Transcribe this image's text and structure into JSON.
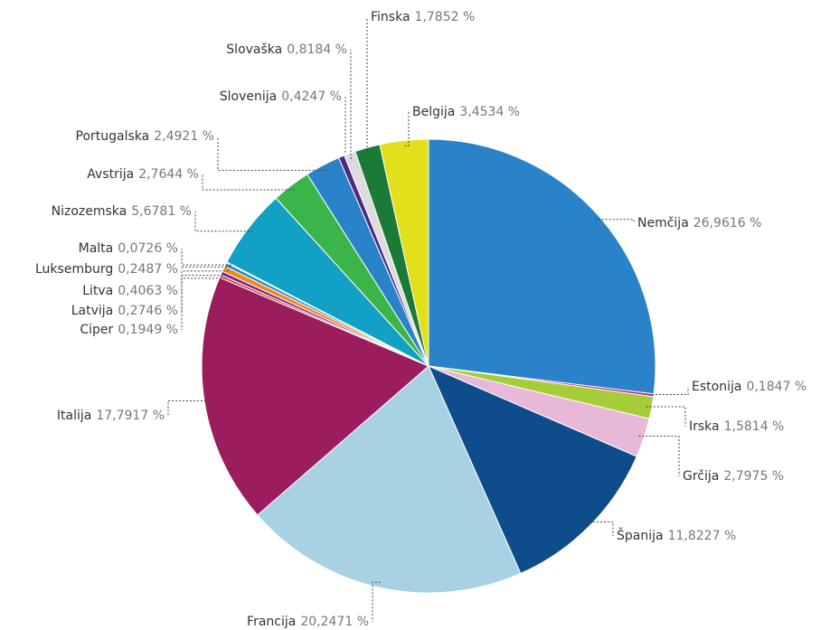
{
  "chart_data": {
    "type": "pie",
    "categories": [
      "Nemčija",
      "Estonija",
      "Irska",
      "Grčija",
      "Španija",
      "Francija",
      "Italija",
      "Ciper",
      "Latvija",
      "Litva",
      "Luksemburg",
      "Malta",
      "Nizozemska",
      "Avstrija",
      "Portugalska",
      "Slovenija",
      "Slovaška",
      "Finska",
      "Belgija"
    ],
    "values": [
      26.9616,
      0.1847,
      1.5814,
      2.7975,
      11.8227,
      20.2471,
      17.7917,
      0.1949,
      0.2746,
      0.4063,
      0.2487,
      0.0726,
      5.6781,
      2.7644,
      2.4921,
      0.4247,
      0.8184,
      1.7852,
      3.4534
    ],
    "value_labels": [
      "26,9616 %",
      "0,1847 %",
      "1,5814 %",
      "2,7975 %",
      "11,8227 %",
      "20,2471 %",
      "17,7917 %",
      "0,1949 %",
      "0,2746 %",
      "0,4063 %",
      "0,2487 %",
      "0,0726 %",
      "5,6781 %",
      "2,7644 %",
      "2,4921 %",
      "0,4247 %",
      "0,8184 %",
      "1,7852 %",
      "3,4534 %"
    ],
    "colors": [
      "#2a83c8",
      "#c0177a",
      "#a6cc39",
      "#e8b8d8",
      "#0f4c8c",
      "#a8d1e3",
      "#9c1d5e",
      "#e23b3b",
      "#7a2a85",
      "#f08a1c",
      "#2a83c8",
      "#c0177a",
      "#12a1c4",
      "#3bb44a",
      "#2a83c8",
      "#4b2a85",
      "#dcdcdc",
      "#1a7a36",
      "#e2e01b"
    ]
  }
}
